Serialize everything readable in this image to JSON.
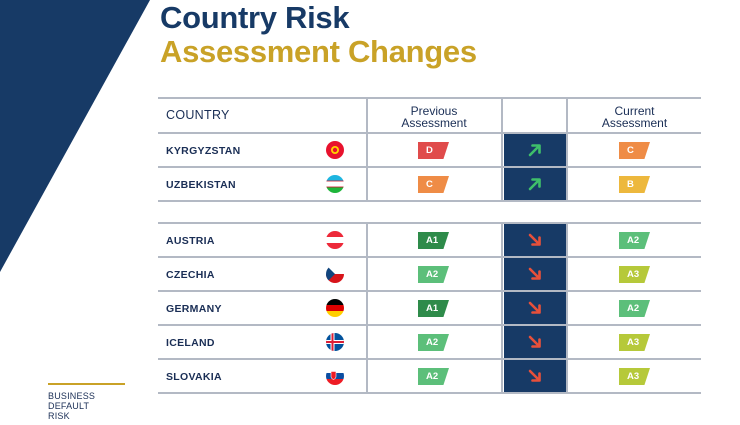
{
  "title": {
    "line1": "Country Risk",
    "line2": "Assessment Changes"
  },
  "sidebar": {
    "lines": [
      "BUSINESS",
      "DEFAULT",
      "RISK"
    ]
  },
  "headers": {
    "country": "COUNTRY",
    "previous": [
      "Previous",
      "Assessment"
    ],
    "current": [
      "Current",
      "Assessment"
    ]
  },
  "upgrades": [
    {
      "country": "KYRGYZSTAN",
      "flag": "kyrgyzstan-flag",
      "previous": "D",
      "previous_color": "#e04b4b",
      "current": "C",
      "current_color": "#ef8c46",
      "direction": "up"
    },
    {
      "country": "UZBEKISTAN",
      "flag": "uzbekistan-flag",
      "previous": "C",
      "previous_color": "#ef8c46",
      "current": "B",
      "current_color": "#edb83d",
      "direction": "up"
    }
  ],
  "downgrades": [
    {
      "country": "AUSTRIA",
      "flag": "austria-flag",
      "previous": "A1",
      "previous_color": "#2e8b4a",
      "current": "A2",
      "current_color": "#5cbf7a",
      "direction": "down"
    },
    {
      "country": "CZECHIA",
      "flag": "czechia-flag",
      "previous": "A2",
      "previous_color": "#5cbf7a",
      "current": "A3",
      "current_color": "#b6c93a",
      "direction": "down"
    },
    {
      "country": "GERMANY",
      "flag": "germany-flag",
      "previous": "A1",
      "previous_color": "#2e8b4a",
      "current": "A2",
      "current_color": "#5cbf7a",
      "direction": "down"
    },
    {
      "country": "ICELAND",
      "flag": "iceland-flag",
      "previous": "A2",
      "previous_color": "#5cbf7a",
      "current": "A3",
      "current_color": "#b6c93a",
      "direction": "down"
    },
    {
      "country": "SLOVAKIA",
      "flag": "slovakia-flag",
      "previous": "A2",
      "previous_color": "#5cbf7a",
      "current": "A3",
      "current_color": "#b6c93a",
      "direction": "down"
    }
  ],
  "colors": {
    "navy": "#173a66",
    "gold": "#c9a227",
    "arrow_up": "#3fbf6a",
    "arrow_down": "#e8503a"
  }
}
